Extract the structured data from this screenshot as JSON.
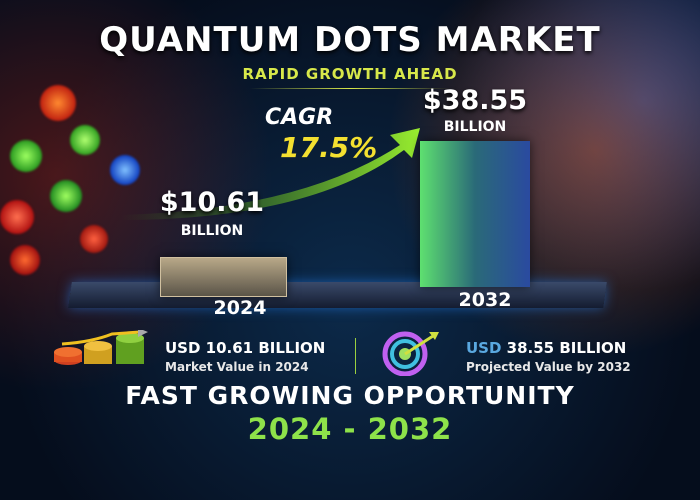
{
  "header": {
    "title": "QUANTUM DOTS MARKET",
    "subtitle": "RAPID GROWTH AHEAD"
  },
  "cagr": {
    "label": "CAGR",
    "value": "17.5%"
  },
  "chart_data": {
    "type": "bar",
    "categories": [
      "2024",
      "2032"
    ],
    "values": [
      10.61,
      38.55
    ],
    "data_labels": [
      "$10.61",
      "$38.55"
    ],
    "unit_label": "BILLION",
    "colors": [
      "#8a7e68",
      "#3a8a80"
    ]
  },
  "stats": [
    {
      "icon": "coins-growth-icon",
      "value_prefix": "USD",
      "value": "10.61 BILLION",
      "caption": "Market Value in 2024"
    },
    {
      "icon": "target-icon",
      "value_prefix": "USD",
      "value": "38.55 BILLION",
      "caption": "Projected Value by 2032"
    }
  ],
  "footer": {
    "line1": "FAST GROWING OPPORTUNITY",
    "line2": "2024 - 2032"
  }
}
